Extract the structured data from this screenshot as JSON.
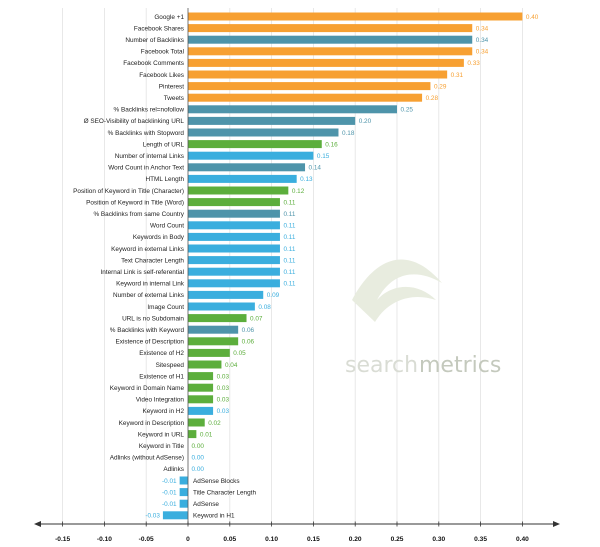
{
  "watermark": {
    "part1": "search",
    "part2": "metrics"
  },
  "colors": {
    "orange": "#f7a032",
    "teal": "#4e94aa",
    "green": "#5cae3c",
    "blue": "#3aaede"
  },
  "chart_data": {
    "type": "bar",
    "orientation": "horizontal",
    "title": "",
    "xlabel": "",
    "ylabel": "",
    "xlim": [
      -0.175,
      0.455
    ],
    "x_ticks": [
      -0.15,
      -0.1,
      -0.05,
      0,
      0.05,
      0.1,
      0.15,
      0.2,
      0.25,
      0.3,
      0.35,
      0.4
    ],
    "x_tick_labels": [
      "-0.15",
      "-0.10",
      "-0.05",
      "0",
      "0.05",
      "0.10",
      "0.15",
      "0.20",
      "0.25",
      "0.30",
      "0.35",
      "0.40"
    ],
    "grid": "vertical",
    "legend": "none",
    "bars": [
      {
        "label": "Google +1",
        "value": 0.4,
        "value_label": "0.40",
        "color": "orange"
      },
      {
        "label": "Facebook Shares",
        "value": 0.34,
        "value_label": "0.34",
        "color": "orange"
      },
      {
        "label": "Number of Backlinks",
        "value": 0.34,
        "value_label": "0.34",
        "color": "teal"
      },
      {
        "label": "Facebook Total",
        "value": 0.34,
        "value_label": "0.34",
        "color": "orange"
      },
      {
        "label": "Facebook Comments",
        "value": 0.33,
        "value_label": "0.33",
        "color": "orange"
      },
      {
        "label": "Facebook Likes",
        "value": 0.31,
        "value_label": "0.31",
        "color": "orange"
      },
      {
        "label": "Pinterest",
        "value": 0.29,
        "value_label": "0.29",
        "color": "orange"
      },
      {
        "label": "Tweets",
        "value": 0.28,
        "value_label": "0.28",
        "color": "orange"
      },
      {
        "label": "% Backlinks rel=nofollow",
        "value": 0.25,
        "value_label": "0.25",
        "color": "teal"
      },
      {
        "label": "Ø SEO-Visibility of backlinking URL",
        "value": 0.2,
        "value_label": "0.20",
        "color": "teal"
      },
      {
        "label": "% Backlinks with Stopword",
        "value": 0.18,
        "value_label": "0.18",
        "color": "teal"
      },
      {
        "label": "Length of URL",
        "value": 0.16,
        "value_label": "0.16",
        "color": "green"
      },
      {
        "label": "Number of internal Links",
        "value": 0.15,
        "value_label": "0.15",
        "color": "blue"
      },
      {
        "label": "Word Count in Anchor Text",
        "value": 0.14,
        "value_label": "0.14",
        "color": "teal"
      },
      {
        "label": "HTML Length",
        "value": 0.13,
        "value_label": "0.13",
        "color": "blue"
      },
      {
        "label": "Position of Keyword in Title (Character)",
        "value": 0.12,
        "value_label": "0.12",
        "color": "green"
      },
      {
        "label": "Position of Keyword in Title (Word)",
        "value": 0.11,
        "value_label": "0.11",
        "color": "green"
      },
      {
        "label": "% Backlinks from same Country",
        "value": 0.11,
        "value_label": "0.11",
        "color": "teal"
      },
      {
        "label": "Word Count",
        "value": 0.11,
        "value_label": "0.11",
        "color": "blue"
      },
      {
        "label": "Keywords in Body",
        "value": 0.11,
        "value_label": "0.11",
        "color": "blue"
      },
      {
        "label": "Keyword in external Links",
        "value": 0.11,
        "value_label": "0.11",
        "color": "blue"
      },
      {
        "label": "Text Character Length",
        "value": 0.11,
        "value_label": "0.11",
        "color": "blue"
      },
      {
        "label": "Internal Link is self-referential",
        "value": 0.11,
        "value_label": "0.11",
        "color": "blue"
      },
      {
        "label": "Keyword in internal Link",
        "value": 0.11,
        "value_label": "0.11",
        "color": "blue"
      },
      {
        "label": "Number of external Links",
        "value": 0.09,
        "value_label": "0.09",
        "color": "blue"
      },
      {
        "label": "Image Count",
        "value": 0.08,
        "value_label": "0.08",
        "color": "blue"
      },
      {
        "label": "URL is no Subdomain",
        "value": 0.07,
        "value_label": "0.07",
        "color": "green"
      },
      {
        "label": "% Backlinks with Keyword",
        "value": 0.06,
        "value_label": "0.06",
        "color": "teal"
      },
      {
        "label": "Existence of Description",
        "value": 0.06,
        "value_label": "0.06",
        "color": "green"
      },
      {
        "label": "Existence of H2",
        "value": 0.05,
        "value_label": "0.05",
        "color": "green"
      },
      {
        "label": "Sitespeed",
        "value": 0.04,
        "value_label": "0.04",
        "color": "green"
      },
      {
        "label": "Existence of H1",
        "value": 0.03,
        "value_label": "0.03",
        "color": "green"
      },
      {
        "label": "Keyword in Domain Name",
        "value": 0.03,
        "value_label": "0.03",
        "color": "green"
      },
      {
        "label": "Video Integration",
        "value": 0.03,
        "value_label": "0.03",
        "color": "green"
      },
      {
        "label": "Keyword in H2",
        "value": 0.03,
        "value_label": "0.03",
        "color": "blue"
      },
      {
        "label": "Keyword in Description",
        "value": 0.02,
        "value_label": "0.02",
        "color": "green"
      },
      {
        "label": "Keyword in URL",
        "value": 0.01,
        "value_label": "0.01",
        "color": "green"
      },
      {
        "label": "Keyword in Title",
        "value": 0.0,
        "value_label": "0.00",
        "color": "green"
      },
      {
        "label": "Adlinks (without AdSense)",
        "value": 0.0,
        "value_label": "0.00",
        "color": "blue"
      },
      {
        "label": "Adlinks",
        "value": 0.0,
        "value_label": "0.00",
        "color": "blue"
      },
      {
        "label": "AdSense Blocks",
        "value": -0.01,
        "value_label": "-0.01",
        "color": "blue"
      },
      {
        "label": "Title Character Length",
        "value": -0.01,
        "value_label": "-0.01",
        "color": "blue"
      },
      {
        "label": "AdSense",
        "value": -0.01,
        "value_label": "-0.01",
        "color": "blue"
      },
      {
        "label": "Keyword in H1",
        "value": -0.03,
        "value_label": "-0.03",
        "color": "blue"
      }
    ]
  }
}
